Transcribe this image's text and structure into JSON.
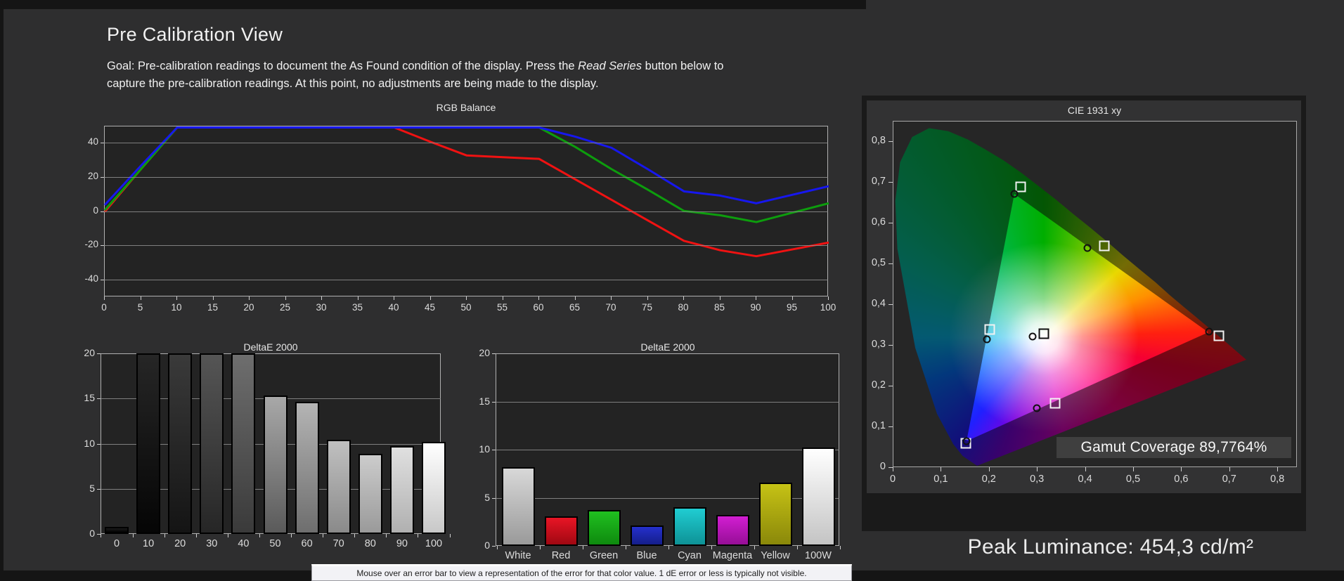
{
  "page": {
    "title": "Pre Calibration View",
    "goal": {
      "line1_pre": "Goal: Pre-calibration readings to document the As Found condition of the display. Press the ",
      "line1_italic": "Read Series",
      "line1_post": " button below to",
      "line2": "capture the pre-calibration readings. At this point, no adjustments are being made to the display."
    },
    "peak_luminance": "Peak Luminance: 454,3 cd/m²",
    "tooltip": "Mouse over an error bar to view a representation of the error for that color value. 1 dE error or less is typically not visible."
  },
  "colors": {
    "background": "#2e2e2f",
    "plot_background": "#232323",
    "grid": "#8f8f8f",
    "frame": "#b0b0b0",
    "red_line": "#f01212",
    "green_line": "#0d9d0d",
    "blue_line": "#1717ee"
  },
  "chart_data": [
    {
      "id": "rgb_balance",
      "type": "line",
      "title": "RGB Balance",
      "x": [
        0,
        5,
        10,
        15,
        20,
        25,
        30,
        35,
        40,
        45,
        50,
        55,
        60,
        65,
        70,
        75,
        80,
        85,
        90,
        95,
        100
      ],
      "series": [
        {
          "name": "Red",
          "color": "#f01212",
          "values": [
            0,
            25,
            50,
            50,
            50,
            50,
            50,
            50,
            50,
            41,
            33,
            32,
            31,
            19,
            7,
            -5,
            -17,
            -22.5,
            -26,
            -22,
            -18
          ]
        },
        {
          "name": "Green",
          "color": "#0d9d0d",
          "values": [
            1,
            25,
            50,
            50,
            50,
            50,
            50,
            50,
            50,
            50,
            50,
            50,
            50,
            38,
            25,
            13,
            0.5,
            -2,
            -6,
            -0.5,
            5
          ]
        },
        {
          "name": "Blue",
          "color": "#1717ee",
          "values": [
            4,
            27,
            50,
            50,
            50,
            50,
            50,
            50,
            50,
            50,
            50,
            50,
            50,
            44,
            37.5,
            25,
            12,
            9.5,
            5,
            10,
            15
          ]
        }
      ],
      "ylim": [
        -50,
        50
      ],
      "yticks": [
        40,
        20,
        0,
        -20,
        -40
      ],
      "xticks": [
        0,
        5,
        10,
        15,
        20,
        25,
        30,
        35,
        40,
        45,
        50,
        55,
        60,
        65,
        70,
        75,
        80,
        85,
        90,
        95,
        100
      ],
      "grid": true,
      "legend": "none"
    },
    {
      "id": "grayscale_deltae",
      "type": "bar",
      "title": "DeltaE 2000",
      "categories": [
        "0",
        "10",
        "20",
        "30",
        "40",
        "50",
        "60",
        "70",
        "80",
        "90",
        "100"
      ],
      "values": [
        0.8,
        20,
        20,
        20,
        20,
        15.3,
        14.6,
        10.4,
        8.9,
        9.7,
        10.2
      ],
      "clipped_at_max": [
        false,
        true,
        true,
        true,
        true,
        false,
        false,
        false,
        false,
        false,
        false
      ],
      "bar_gradients": [
        [
          "#1a1a1a",
          "#000000"
        ],
        [
          "#262626",
          "#050505"
        ],
        [
          "#3a3a3a",
          "#141414"
        ],
        [
          "#555555",
          "#262626"
        ],
        [
          "#6e6e6e",
          "#3a3a3a"
        ],
        [
          "#a8a8a8",
          "#5a5a5a"
        ],
        [
          "#b4b4b4",
          "#6e6e6e"
        ],
        [
          "#c0c0c0",
          "#8a8a8a"
        ],
        [
          "#cccccc",
          "#9a9a9a"
        ],
        [
          "#e0e0e0",
          "#b0b0b0"
        ],
        [
          "#ffffff",
          "#c8c8c8"
        ]
      ],
      "ylim": [
        0,
        20
      ],
      "yticks": [
        0,
        5,
        10,
        15,
        20
      ],
      "grid": true
    },
    {
      "id": "color_deltae",
      "type": "bar",
      "title": "DeltaE 2000",
      "categories": [
        "White",
        "Red",
        "Green",
        "Blue",
        "Cyan",
        "Magenta",
        "Yellow",
        "100W"
      ],
      "values": [
        8.2,
        3.1,
        3.7,
        2.1,
        4.0,
        3.2,
        6.6,
        10.2
      ],
      "bar_gradients": [
        [
          "#d8d8d8",
          "#9a9a9a"
        ],
        [
          "#e81525",
          "#a00812"
        ],
        [
          "#20c020",
          "#0e8a0e"
        ],
        [
          "#2530cc",
          "#141e8a"
        ],
        [
          "#20cdd2",
          "#0e9296"
        ],
        [
          "#d21ed2",
          "#960e96"
        ],
        [
          "#c6c215",
          "#8a880a"
        ],
        [
          "#ffffff",
          "#c4c4c4"
        ]
      ],
      "ylim": [
        0,
        20
      ],
      "yticks": [
        0,
        5,
        10,
        15,
        20
      ],
      "grid": true
    },
    {
      "id": "cie_1931_xy",
      "type": "scatter",
      "title": "CIE 1931 xy",
      "xlim": [
        0,
        0.84
      ],
      "ylim": [
        0,
        0.85
      ],
      "xtick_labels": [
        "0",
        "0,1",
        "0,2",
        "0,3",
        "0,4",
        "0,5",
        "0,6",
        "0,7",
        "0,8"
      ],
      "ytick_labels": [
        "0",
        "0,1",
        "0,2",
        "0,3",
        "0,4",
        "0,5",
        "0,6",
        "0,7",
        "0,8"
      ],
      "gamut_coverage_label": "Gamut Coverage 89,7764%",
      "measured_gamut_triangle": {
        "red": [
          0.655,
          0.333
        ],
        "green": [
          0.252,
          0.672
        ],
        "blue": [
          0.152,
          0.066
        ]
      },
      "target_squares": [
        {
          "name": "red",
          "x": 0.677,
          "y": 0.324
        },
        {
          "name": "green",
          "x": 0.265,
          "y": 0.69
        },
        {
          "name": "blue",
          "x": 0.15,
          "y": 0.06
        },
        {
          "name": "cyan",
          "x": 0.2,
          "y": 0.34
        },
        {
          "name": "magenta",
          "x": 0.336,
          "y": 0.159
        },
        {
          "name": "yellow",
          "x": 0.439,
          "y": 0.545
        },
        {
          "name": "white",
          "x": 0.313,
          "y": 0.329
        }
      ],
      "measured_points": [
        {
          "name": "red",
          "x": 0.657,
          "y": 0.334
        },
        {
          "name": "green",
          "x": 0.252,
          "y": 0.672
        },
        {
          "name": "blue",
          "x": 0.152,
          "y": 0.066
        },
        {
          "name": "cyan",
          "x": 0.194,
          "y": 0.316
        },
        {
          "name": "magenta",
          "x": 0.298,
          "y": 0.146
        },
        {
          "name": "yellow",
          "x": 0.404,
          "y": 0.54
        },
        {
          "name": "white",
          "x": 0.29,
          "y": 0.322
        }
      ]
    }
  ]
}
